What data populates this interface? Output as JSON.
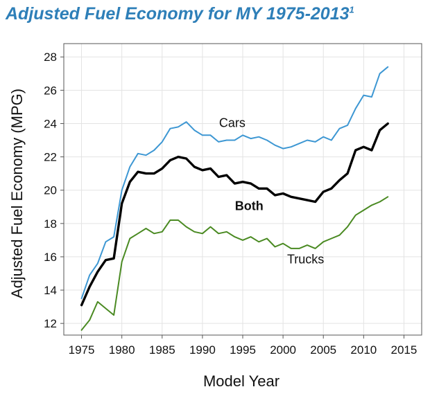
{
  "title": {
    "text": "Adjusted Fuel Economy for MY 1975-2013",
    "footnote": "1"
  },
  "colors": {
    "title": "#2e7fb8",
    "cars": "#3d97d3",
    "both": "#000000",
    "trucks": "#4a8a22",
    "grid": "#e3e3e3",
    "frame": "#555555"
  },
  "chart_data": {
    "type": "line",
    "title": "Adjusted Fuel Economy for MY 1975-2013",
    "xlabel": "Model Year",
    "ylabel": "Adjusted Fuel Economy (MPG)",
    "xlim": [
      1972.8,
      2017.2
    ],
    "ylim": [
      11.3,
      28.8
    ],
    "xticks": [
      1975,
      1980,
      1985,
      1990,
      1995,
      2000,
      2005,
      2010,
      2015
    ],
    "yticks": [
      12,
      14,
      16,
      18,
      20,
      22,
      24,
      26,
      28
    ],
    "grid": true,
    "legend": "inline labels",
    "x": [
      1975,
      1976,
      1977,
      1978,
      1979,
      1980,
      1981,
      1982,
      1983,
      1984,
      1985,
      1986,
      1987,
      1988,
      1989,
      1990,
      1991,
      1992,
      1993,
      1994,
      1995,
      1996,
      1997,
      1998,
      1999,
      2000,
      2001,
      2002,
      2003,
      2004,
      2005,
      2006,
      2007,
      2008,
      2009,
      2010,
      2011,
      2012,
      2013
    ],
    "series": [
      {
        "name": "Cars",
        "label": "Cars",
        "color": "#3d97d3",
        "width": 2,
        "label_x": 1993.7,
        "label_y": 23.8,
        "values": [
          13.5,
          14.9,
          15.6,
          16.9,
          17.2,
          20.0,
          21.4,
          22.2,
          22.1,
          22.4,
          22.9,
          23.7,
          23.8,
          24.1,
          23.6,
          23.3,
          23.3,
          22.9,
          23.0,
          23.0,
          23.3,
          23.1,
          23.2,
          23.0,
          22.7,
          22.5,
          22.6,
          22.8,
          23.0,
          22.9,
          23.2,
          23.0,
          23.7,
          23.9,
          24.9,
          25.7,
          25.6,
          27.0,
          27.4
        ]
      },
      {
        "name": "Both",
        "label": "Both",
        "color": "#000000",
        "width": 3.4,
        "label_x": 1995.8,
        "label_y": 18.8,
        "values": [
          13.1,
          14.2,
          15.1,
          15.8,
          15.9,
          19.2,
          20.5,
          21.1,
          21.0,
          21.0,
          21.3,
          21.8,
          22.0,
          21.9,
          21.4,
          21.2,
          21.3,
          20.8,
          20.9,
          20.4,
          20.5,
          20.4,
          20.1,
          20.1,
          19.7,
          19.8,
          19.6,
          19.5,
          19.4,
          19.3,
          19.9,
          20.1,
          20.6,
          21.0,
          22.4,
          22.6,
          22.4,
          23.6,
          24.0
        ]
      },
      {
        "name": "Trucks",
        "label": "Trucks",
        "color": "#4a8a22",
        "width": 2,
        "label_x": 2002.8,
        "label_y": 15.6,
        "values": [
          11.6,
          12.2,
          13.3,
          12.9,
          12.5,
          15.7,
          17.1,
          17.4,
          17.7,
          17.4,
          17.5,
          18.2,
          18.2,
          17.8,
          17.5,
          17.4,
          17.8,
          17.4,
          17.5,
          17.2,
          17.0,
          17.2,
          16.9,
          17.1,
          16.6,
          16.8,
          16.5,
          16.5,
          16.7,
          16.5,
          16.9,
          17.1,
          17.3,
          17.8,
          18.5,
          18.8,
          19.1,
          19.3,
          19.6
        ]
      }
    ]
  }
}
